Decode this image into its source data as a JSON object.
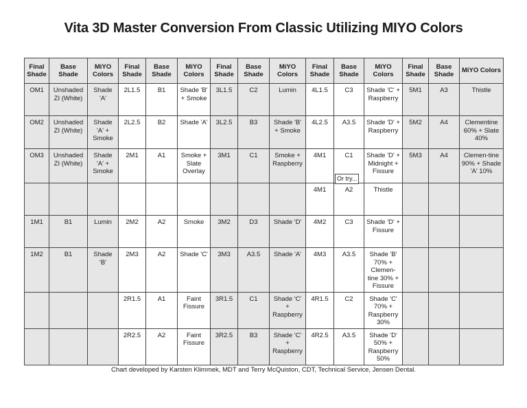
{
  "title": "Vita 3D Master Conversion From Classic Utilizing MIYO Colors",
  "headers": [
    "Final Shade",
    "Base Shade",
    "MiYO Colors",
    "Final Shade",
    "Base Shade",
    "MiYO Colors",
    "Final Shade",
    "Base Shade",
    "MiYO Colors",
    "Final Shade",
    "Base Shade",
    "MiYO Colors",
    "Final Shade",
    "Base Shade",
    "MiYO Colors"
  ],
  "rows": [
    [
      "OM1",
      "Unshaded ZI (White)",
      "Shade 'A'",
      "2L1.5",
      "B1",
      "Shade 'B' + Smoke",
      "3L1.5",
      "C2",
      "Lumin",
      "4L1.5",
      "C3",
      "Shade 'C' + Raspberry",
      "5M1",
      "A3",
      "Thistle"
    ],
    [
      "OM2",
      "Unshaded ZI (White)",
      "Shade 'A' + Smoke",
      "2L2.5",
      "B2",
      "Shade 'A'",
      "3L2.5",
      "B3",
      "Shade 'B' + Smoke",
      "4L2.5",
      "A3.5",
      "Shade 'D' + Raspberry",
      "5M2",
      "A4",
      "Clementine 60% + Slate 40%"
    ],
    [
      "OM3",
      "Unshaded ZI (White)",
      "Shade 'A' + Smoke",
      "2M1",
      "A1",
      "Smoke + Slate Overlay",
      "3M1",
      "C1",
      "Smoke + Raspberry",
      "4M1",
      "C1",
      "Shade 'D' + Midnight + Fissure",
      "5M3",
      "A4",
      "Clemen-tine 90% + Shade 'A' 10%"
    ],
    [
      "",
      "",
      "",
      "",
      "",
      "",
      "",
      "",
      "",
      "4M1",
      "A2",
      "Thistle",
      "",
      "",
      ""
    ],
    [
      "1M1",
      "B1",
      "Lumin",
      "2M2",
      "A2",
      "Smoke",
      "3M2",
      "D3",
      "Shade 'D'",
      "4M2",
      "C3",
      "Shade 'D' + Fissure",
      "",
      "",
      ""
    ],
    [
      "1M2",
      "B1",
      "Shade 'B'",
      "2M3",
      "A2",
      "Shade 'C'",
      "3M3",
      "A3.5",
      "Shade 'A'",
      "4M3",
      "A3.5",
      "Shade 'B' 70% + Clemen-tine 30% + Fissure",
      "",
      "",
      ""
    ],
    [
      "",
      "",
      "",
      "2R1.5",
      "A1",
      "Faint Fissure",
      "3R1.5",
      "C1",
      "Shade 'C' + Raspberry",
      "4R1.5",
      "C2",
      "Shade 'C' 70% + Raspberry 30%",
      "",
      "",
      ""
    ],
    [
      "",
      "",
      "",
      "2R2.5",
      "A2",
      "Faint Fissure",
      "3R2.5",
      "B3",
      "Shade 'C' + Raspberry",
      "4R2.5",
      "A3.5",
      "Shade 'D' 50% + Raspberry 50%",
      "",
      "",
      ""
    ]
  ],
  "or_try": "Or try...",
  "footer": "Chart developed by Karsten Klimmek, MDT and Terry McQuiston, CDT, Technical Service, Jensen Dental."
}
